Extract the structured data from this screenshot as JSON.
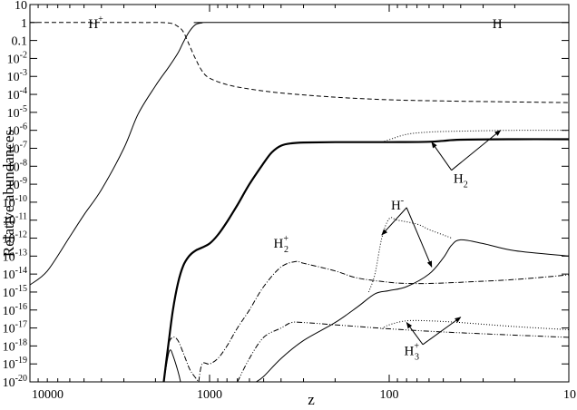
{
  "chart_data": {
    "type": "line",
    "title": "",
    "xlabel": "z",
    "ylabel": "Relative abundances",
    "x_scale": "log",
    "x_reversed": true,
    "xlim": [
      10000,
      10
    ],
    "y_scale": "log",
    "ylim": [
      1e-20,
      10
    ],
    "x_tick_labels": [
      "10000",
      "1000",
      "100",
      "10"
    ],
    "x_tick_values": [
      10000,
      1000,
      100,
      10
    ],
    "y_tick_labels": [
      {
        "base": "10",
        "exp": "-20",
        "value": 1e-20
      },
      {
        "base": "10",
        "exp": "-19",
        "value": 1e-19
      },
      {
        "base": "10",
        "exp": "-18",
        "value": 1e-18
      },
      {
        "base": "10",
        "exp": "-17",
        "value": 1e-17
      },
      {
        "base": "10",
        "exp": "-16",
        "value": 1e-16
      },
      {
        "base": "10",
        "exp": "-15",
        "value": 1e-15
      },
      {
        "base": "10",
        "exp": "-14",
        "value": 1e-14
      },
      {
        "base": "10",
        "exp": "-13",
        "value": 1e-13
      },
      {
        "base": "10",
        "exp": "-12",
        "value": 1e-12
      },
      {
        "base": "10",
        "exp": "-11",
        "value": 1e-11
      },
      {
        "base": "10",
        "exp": "-10",
        "value": 1e-10
      },
      {
        "base": "10",
        "exp": "-9",
        "value": 1e-09
      },
      {
        "base": "10",
        "exp": "-8",
        "value": 1e-08
      },
      {
        "base": "10",
        "exp": "-7",
        "value": 1e-07
      },
      {
        "base": "10",
        "exp": "-6",
        "value": 1e-06
      },
      {
        "base": "10",
        "exp": "-5",
        "value": 1e-05
      },
      {
        "base": "10",
        "exp": "-4",
        "value": 0.0001
      },
      {
        "base": "10",
        "exp": "-3",
        "value": 0.001
      },
      {
        "base": "10",
        "exp": "-2",
        "value": 0.01
      },
      {
        "base": "",
        "exp": "",
        "text": "0.1",
        "value": 0.1
      },
      {
        "base": "",
        "exp": "",
        "text": "1",
        "value": 1
      },
      {
        "base": "",
        "exp": "",
        "text": "10",
        "value": 10
      }
    ],
    "grid": false,
    "legend": "none",
    "series": [
      {
        "id": "H",
        "style": "solid",
        "points": [
          [
            10000,
            2.5e-15
          ],
          [
            8000,
            1.5e-14
          ],
          [
            6000,
            1.2e-12
          ],
          [
            5000,
            2e-11
          ],
          [
            4000,
            5e-10
          ],
          [
            3000,
            1e-07
          ],
          [
            2500,
            8e-06
          ],
          [
            2000,
            0.0003
          ],
          [
            1700,
            0.003
          ],
          [
            1500,
            0.02
          ],
          [
            1400,
            0.08
          ],
          [
            1300,
            0.3
          ],
          [
            1200,
            0.75
          ],
          [
            1100,
            0.95
          ],
          [
            1000,
            1.0
          ],
          [
            100,
            1.0
          ],
          [
            10,
            1.0
          ]
        ]
      },
      {
        "id": "H+",
        "style": "dashed",
        "points": [
          [
            10000,
            1.0
          ],
          [
            2500,
            1.0
          ],
          [
            1700,
            0.95
          ],
          [
            1500,
            0.6
          ],
          [
            1400,
            0.3
          ],
          [
            1300,
            0.06
          ],
          [
            1200,
            0.01
          ],
          [
            1100,
            0.002
          ],
          [
            1000,
            0.0008
          ],
          [
            800,
            0.00035
          ],
          [
            600,
            0.0002
          ],
          [
            400,
            0.00012
          ],
          [
            200,
            7e-05
          ],
          [
            100,
            5e-05
          ],
          [
            50,
            4.3e-05
          ],
          [
            20,
            3.8e-05
          ],
          [
            10,
            3.5e-05
          ]
        ]
      },
      {
        "id": "H2-thick",
        "style": "thick",
        "points": [
          [
            1800,
            1e-20
          ],
          [
            1700,
            1e-18
          ],
          [
            1600,
            1e-16
          ],
          [
            1500,
            3e-15
          ],
          [
            1400,
            3e-14
          ],
          [
            1300,
            1e-13
          ],
          [
            1200,
            2e-13
          ],
          [
            1100,
            3e-13
          ],
          [
            1000,
            5e-13
          ],
          [
            900,
            1.5e-12
          ],
          [
            800,
            8e-12
          ],
          [
            700,
            7e-11
          ],
          [
            600,
            1e-09
          ],
          [
            500,
            1.5e-08
          ],
          [
            450,
            6e-08
          ],
          [
            400,
            1.4e-07
          ],
          [
            350,
            1.9e-07
          ],
          [
            300,
            2.1e-07
          ],
          [
            200,
            2.2e-07
          ],
          [
            100,
            2.2e-07
          ],
          [
            60,
            2.3e-07
          ],
          [
            50,
            2.6e-07
          ],
          [
            40,
            3e-07
          ],
          [
            20,
            3.2e-07
          ],
          [
            10,
            3.2e-07
          ]
        ]
      },
      {
        "id": "H2-dotted",
        "style": "dotted",
        "points": [
          [
            110,
            2.2e-07
          ],
          [
            100,
            3e-07
          ],
          [
            80,
            6e-07
          ],
          [
            60,
            8e-07
          ],
          [
            40,
            9e-07
          ],
          [
            20,
            1e-06
          ],
          [
            10,
            1e-06
          ]
        ]
      },
      {
        "id": "H2+",
        "style": "dashdot",
        "points": [
          [
            1800,
            1e-20
          ],
          [
            1700,
            1e-18
          ],
          [
            1600,
            3e-18
          ],
          [
            1500,
            2e-18
          ],
          [
            1400,
            4e-19
          ],
          [
            1300,
            6e-20
          ],
          [
            1250,
            3e-20
          ],
          [
            1150,
            1e-20
          ]
        ]
      },
      {
        "id": "H2+-main",
        "style": "dashdot",
        "points": [
          [
            1150,
            1e-20
          ],
          [
            1100,
            1e-19
          ],
          [
            1000,
            1e-19
          ],
          [
            900,
            2e-19
          ],
          [
            800,
            1e-18
          ],
          [
            700,
            1e-17
          ],
          [
            600,
            1e-16
          ],
          [
            500,
            2e-15
          ],
          [
            400,
            2.5e-14
          ],
          [
            330,
            5e-14
          ],
          [
            300,
            4e-14
          ],
          [
            200,
            1.5e-14
          ],
          [
            150,
            6e-15
          ],
          [
            100,
            3.5e-15
          ],
          [
            80,
            3e-15
          ],
          [
            60,
            3e-15
          ],
          [
            40,
            3.5e-15
          ],
          [
            20,
            5e-15
          ],
          [
            10,
            9e-15
          ]
        ]
      },
      {
        "id": "H-small",
        "style": "solid",
        "points": [
          [
            1800,
            1e-20
          ],
          [
            1700,
            3e-19
          ],
          [
            1650,
            6e-19
          ],
          [
            1600,
            3e-19
          ],
          [
            1500,
            4e-20
          ],
          [
            1450,
            1e-20
          ]
        ]
      },
      {
        "id": "H-",
        "style": "solid",
        "points": [
          [
            550,
            1e-20
          ],
          [
            500,
            2e-20
          ],
          [
            400,
            2e-19
          ],
          [
            300,
            2e-18
          ],
          [
            200,
            2e-17
          ],
          [
            150,
            1.5e-16
          ],
          [
            120,
            8e-16
          ],
          [
            100,
            1.2e-15
          ],
          [
            80,
            2e-15
          ],
          [
            60,
            1e-14
          ],
          [
            50,
            8e-14
          ],
          [
            45,
            4e-13
          ],
          [
            40,
            8e-13
          ],
          [
            30,
            5e-13
          ],
          [
            20,
            2e-13
          ],
          [
            10,
            1e-13
          ]
        ]
      },
      {
        "id": "H- dotted",
        "style": "dotted",
        "points": [
          [
            130,
            1e-15
          ],
          [
            120,
            1e-14
          ],
          [
            110,
            1e-12
          ],
          [
            100,
            1.2e-11
          ],
          [
            90,
            1e-11
          ],
          [
            70,
            6e-12
          ],
          [
            60,
            3e-12
          ],
          [
            50,
            1.5e-12
          ],
          [
            45,
            1e-12
          ]
        ]
      },
      {
        "id": "H3+ dashdotdot",
        "style": "dashdotdot",
        "points": [
          [
            700,
            1e-20
          ],
          [
            600,
            2e-19
          ],
          [
            500,
            3e-18
          ],
          [
            400,
            1e-17
          ],
          [
            350,
            2e-17
          ],
          [
            300,
            2e-17
          ],
          [
            200,
            1.5e-17
          ],
          [
            100,
            9e-18
          ],
          [
            50,
            6e-18
          ],
          [
            20,
            4e-18
          ],
          [
            10,
            3e-18
          ]
        ]
      },
      {
        "id": "H3+ dotted",
        "style": "dotted",
        "points": [
          [
            110,
            9e-18
          ],
          [
            100,
            1.5e-17
          ],
          [
            80,
            2.5e-17
          ],
          [
            60,
            2.5e-17
          ],
          [
            40,
            2e-17
          ],
          [
            20,
            1.2e-17
          ],
          [
            10,
            8e-18
          ]
        ]
      }
    ],
    "annotations": [
      {
        "base": "H",
        "sup": "+",
        "sub": "",
        "x": 4300,
        "y": 0.5,
        "target": "H+"
      },
      {
        "base": "H",
        "sup": "",
        "sub": "",
        "x": 25,
        "y": 0.5,
        "target": "H"
      },
      {
        "base": "H",
        "sup": "",
        "sub": "2",
        "x": 40,
        "y": 1.2e-09,
        "target": "H2"
      },
      {
        "base": "H",
        "sup": "-",
        "sub": "",
        "x": 90,
        "y": 4e-11,
        "target": "H-"
      },
      {
        "base": "H",
        "sup": "+",
        "sub": "2",
        "x": 400,
        "y": 3e-13,
        "target": "H2+"
      },
      {
        "base": "H",
        "sup": "+",
        "sub": "3",
        "x": 75,
        "y": 3e-19,
        "target": "H3+"
      }
    ],
    "arrows": [
      {
        "from": [
          45,
          6e-09
        ],
        "to": [
          58,
          2.2e-07
        ]
      },
      {
        "from": [
          45,
          6e-09
        ],
        "to": [
          24,
          1e-06
        ]
      },
      {
        "from": [
          80,
          5e-11
        ],
        "to": [
          110,
          1.5e-12
        ]
      },
      {
        "from": [
          80,
          5e-11
        ],
        "to": [
          58,
          2.5e-14
        ]
      },
      {
        "from": [
          65,
          1.2e-18
        ],
        "to": [
          80,
          2e-17
        ]
      },
      {
        "from": [
          65,
          1.2e-18
        ],
        "to": [
          40,
          4e-17
        ]
      }
    ]
  }
}
